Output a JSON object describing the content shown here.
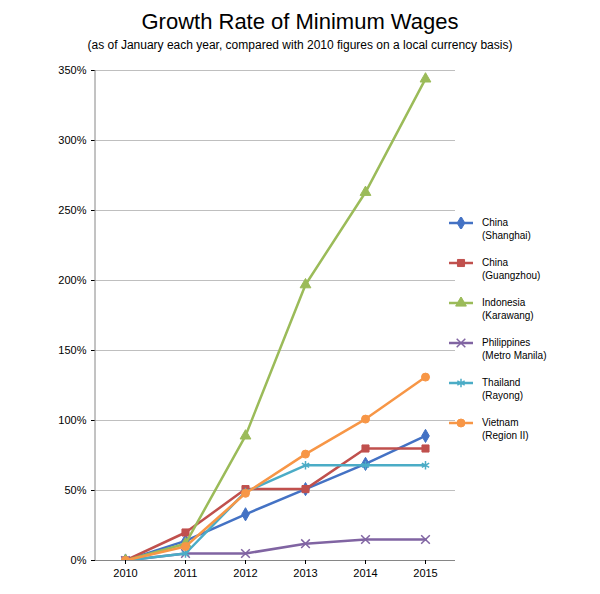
{
  "chart_data": {
    "type": "line",
    "title": "Growth Rate of Minimum Wages",
    "subtitle": "(as of January each year, compared with 2010 figures on a local currency basis)",
    "categories": [
      "2010",
      "2011",
      "2012",
      "2013",
      "2014",
      "2015"
    ],
    "series": [
      {
        "name": "China (Shanghai)",
        "color": "#4472c4",
        "marker": "diamond",
        "values": [
          0,
          14,
          33,
          51,
          69,
          89
        ]
      },
      {
        "name": "China (Guangzhou)",
        "color": "#c0504d",
        "marker": "square",
        "values": [
          0,
          20,
          51,
          51,
          80,
          80
        ]
      },
      {
        "name": "Indonesia (Karawang)",
        "color": "#9bbb59",
        "marker": "triangle",
        "values": [
          0,
          12,
          89,
          197,
          263,
          344
        ]
      },
      {
        "name": "Philippines (Metro Manila)",
        "color": "#8064a2",
        "marker": "times",
        "values": [
          0,
          5,
          5,
          12,
          15,
          15
        ]
      },
      {
        "name": "Thailand (Rayong)",
        "color": "#4bacc6",
        "marker": "asterisk",
        "values": [
          0,
          5,
          49,
          68,
          68,
          68
        ]
      },
      {
        "name": "Vietnam (Region II)",
        "color": "#f79646",
        "marker": "circle",
        "values": [
          0,
          10,
          48,
          76,
          101,
          131
        ]
      }
    ],
    "ylim": [
      0,
      350
    ],
    "yticks": [
      {
        "value": 0,
        "label": "0%"
      },
      {
        "value": 50,
        "label": "50%"
      },
      {
        "value": 100,
        "label": "100%"
      },
      {
        "value": 150,
        "label": "150%"
      },
      {
        "value": 200,
        "label": "200%"
      },
      {
        "value": 250,
        "label": "250%"
      },
      {
        "value": 300,
        "label": "300%"
      },
      {
        "value": 350,
        "label": "350%"
      }
    ],
    "grid": true,
    "legend": "right"
  }
}
